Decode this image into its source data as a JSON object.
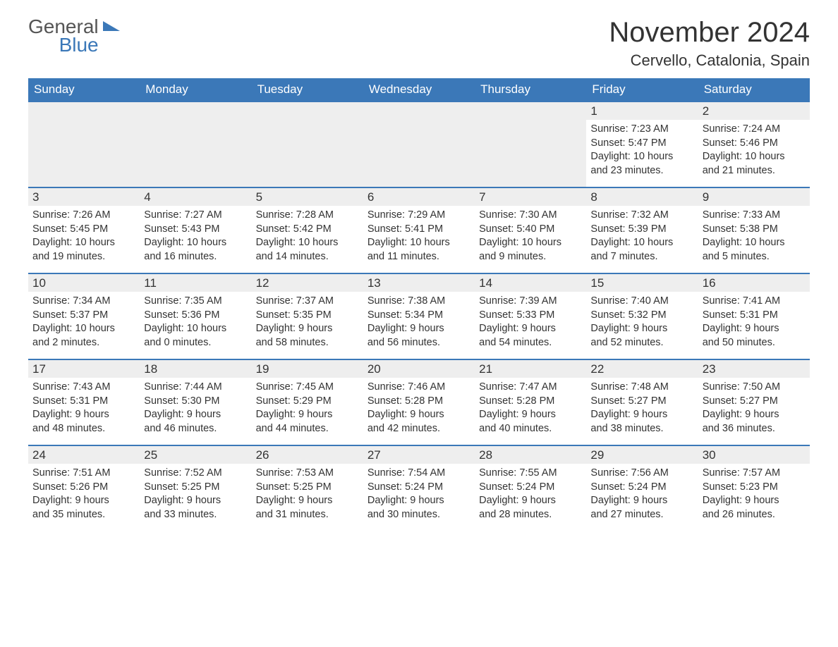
{
  "logo": {
    "part1": "General",
    "part2": "Blue"
  },
  "title": "November 2024",
  "location": "Cervello, Catalonia, Spain",
  "columns": [
    "Sunday",
    "Monday",
    "Tuesday",
    "Wednesday",
    "Thursday",
    "Friday",
    "Saturday"
  ],
  "colors": {
    "header_bg": "#3b78b8",
    "header_text": "#ffffff",
    "daynum_bg": "#eeeeee",
    "row_border": "#3b78b8",
    "body_text": "#333333",
    "background": "#ffffff",
    "logo_blue": "#3b78b8",
    "logo_gray": "#555555"
  },
  "weeks": [
    [
      null,
      null,
      null,
      null,
      null,
      {
        "day": "1",
        "sunrise": "Sunrise: 7:23 AM",
        "sunset": "Sunset: 5:47 PM",
        "daylight1": "Daylight: 10 hours",
        "daylight2": "and 23 minutes."
      },
      {
        "day": "2",
        "sunrise": "Sunrise: 7:24 AM",
        "sunset": "Sunset: 5:46 PM",
        "daylight1": "Daylight: 10 hours",
        "daylight2": "and 21 minutes."
      }
    ],
    [
      {
        "day": "3",
        "sunrise": "Sunrise: 7:26 AM",
        "sunset": "Sunset: 5:45 PM",
        "daylight1": "Daylight: 10 hours",
        "daylight2": "and 19 minutes."
      },
      {
        "day": "4",
        "sunrise": "Sunrise: 7:27 AM",
        "sunset": "Sunset: 5:43 PM",
        "daylight1": "Daylight: 10 hours",
        "daylight2": "and 16 minutes."
      },
      {
        "day": "5",
        "sunrise": "Sunrise: 7:28 AM",
        "sunset": "Sunset: 5:42 PM",
        "daylight1": "Daylight: 10 hours",
        "daylight2": "and 14 minutes."
      },
      {
        "day": "6",
        "sunrise": "Sunrise: 7:29 AM",
        "sunset": "Sunset: 5:41 PM",
        "daylight1": "Daylight: 10 hours",
        "daylight2": "and 11 minutes."
      },
      {
        "day": "7",
        "sunrise": "Sunrise: 7:30 AM",
        "sunset": "Sunset: 5:40 PM",
        "daylight1": "Daylight: 10 hours",
        "daylight2": "and 9 minutes."
      },
      {
        "day": "8",
        "sunrise": "Sunrise: 7:32 AM",
        "sunset": "Sunset: 5:39 PM",
        "daylight1": "Daylight: 10 hours",
        "daylight2": "and 7 minutes."
      },
      {
        "day": "9",
        "sunrise": "Sunrise: 7:33 AM",
        "sunset": "Sunset: 5:38 PM",
        "daylight1": "Daylight: 10 hours",
        "daylight2": "and 5 minutes."
      }
    ],
    [
      {
        "day": "10",
        "sunrise": "Sunrise: 7:34 AM",
        "sunset": "Sunset: 5:37 PM",
        "daylight1": "Daylight: 10 hours",
        "daylight2": "and 2 minutes."
      },
      {
        "day": "11",
        "sunrise": "Sunrise: 7:35 AM",
        "sunset": "Sunset: 5:36 PM",
        "daylight1": "Daylight: 10 hours",
        "daylight2": "and 0 minutes."
      },
      {
        "day": "12",
        "sunrise": "Sunrise: 7:37 AM",
        "sunset": "Sunset: 5:35 PM",
        "daylight1": "Daylight: 9 hours",
        "daylight2": "and 58 minutes."
      },
      {
        "day": "13",
        "sunrise": "Sunrise: 7:38 AM",
        "sunset": "Sunset: 5:34 PM",
        "daylight1": "Daylight: 9 hours",
        "daylight2": "and 56 minutes."
      },
      {
        "day": "14",
        "sunrise": "Sunrise: 7:39 AM",
        "sunset": "Sunset: 5:33 PM",
        "daylight1": "Daylight: 9 hours",
        "daylight2": "and 54 minutes."
      },
      {
        "day": "15",
        "sunrise": "Sunrise: 7:40 AM",
        "sunset": "Sunset: 5:32 PM",
        "daylight1": "Daylight: 9 hours",
        "daylight2": "and 52 minutes."
      },
      {
        "day": "16",
        "sunrise": "Sunrise: 7:41 AM",
        "sunset": "Sunset: 5:31 PM",
        "daylight1": "Daylight: 9 hours",
        "daylight2": "and 50 minutes."
      }
    ],
    [
      {
        "day": "17",
        "sunrise": "Sunrise: 7:43 AM",
        "sunset": "Sunset: 5:31 PM",
        "daylight1": "Daylight: 9 hours",
        "daylight2": "and 48 minutes."
      },
      {
        "day": "18",
        "sunrise": "Sunrise: 7:44 AM",
        "sunset": "Sunset: 5:30 PM",
        "daylight1": "Daylight: 9 hours",
        "daylight2": "and 46 minutes."
      },
      {
        "day": "19",
        "sunrise": "Sunrise: 7:45 AM",
        "sunset": "Sunset: 5:29 PM",
        "daylight1": "Daylight: 9 hours",
        "daylight2": "and 44 minutes."
      },
      {
        "day": "20",
        "sunrise": "Sunrise: 7:46 AM",
        "sunset": "Sunset: 5:28 PM",
        "daylight1": "Daylight: 9 hours",
        "daylight2": "and 42 minutes."
      },
      {
        "day": "21",
        "sunrise": "Sunrise: 7:47 AM",
        "sunset": "Sunset: 5:28 PM",
        "daylight1": "Daylight: 9 hours",
        "daylight2": "and 40 minutes."
      },
      {
        "day": "22",
        "sunrise": "Sunrise: 7:48 AM",
        "sunset": "Sunset: 5:27 PM",
        "daylight1": "Daylight: 9 hours",
        "daylight2": "and 38 minutes."
      },
      {
        "day": "23",
        "sunrise": "Sunrise: 7:50 AM",
        "sunset": "Sunset: 5:27 PM",
        "daylight1": "Daylight: 9 hours",
        "daylight2": "and 36 minutes."
      }
    ],
    [
      {
        "day": "24",
        "sunrise": "Sunrise: 7:51 AM",
        "sunset": "Sunset: 5:26 PM",
        "daylight1": "Daylight: 9 hours",
        "daylight2": "and 35 minutes."
      },
      {
        "day": "25",
        "sunrise": "Sunrise: 7:52 AM",
        "sunset": "Sunset: 5:25 PM",
        "daylight1": "Daylight: 9 hours",
        "daylight2": "and 33 minutes."
      },
      {
        "day": "26",
        "sunrise": "Sunrise: 7:53 AM",
        "sunset": "Sunset: 5:25 PM",
        "daylight1": "Daylight: 9 hours",
        "daylight2": "and 31 minutes."
      },
      {
        "day": "27",
        "sunrise": "Sunrise: 7:54 AM",
        "sunset": "Sunset: 5:24 PM",
        "daylight1": "Daylight: 9 hours",
        "daylight2": "and 30 minutes."
      },
      {
        "day": "28",
        "sunrise": "Sunrise: 7:55 AM",
        "sunset": "Sunset: 5:24 PM",
        "daylight1": "Daylight: 9 hours",
        "daylight2": "and 28 minutes."
      },
      {
        "day": "29",
        "sunrise": "Sunrise: 7:56 AM",
        "sunset": "Sunset: 5:24 PM",
        "daylight1": "Daylight: 9 hours",
        "daylight2": "and 27 minutes."
      },
      {
        "day": "30",
        "sunrise": "Sunrise: 7:57 AM",
        "sunset": "Sunset: 5:23 PM",
        "daylight1": "Daylight: 9 hours",
        "daylight2": "and 26 minutes."
      }
    ]
  ]
}
